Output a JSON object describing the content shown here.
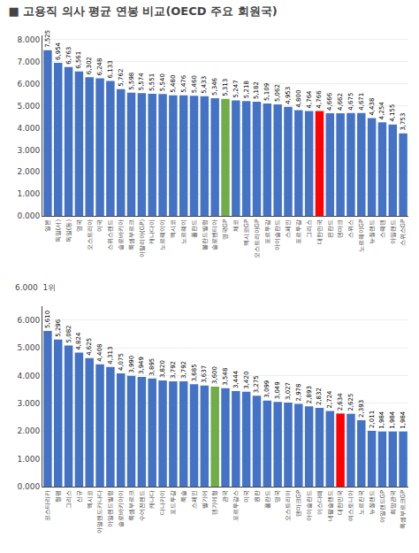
{
  "chart_data": [
    {
      "type": "bar",
      "title": "■ 고용직 의사 평균 연봉 비교(OECD 주요 회원국)",
      "categories": [
        "일본",
        "독일(서)",
        "독일(동)",
        "영국",
        "오스트리아",
        "미국",
        "스위스랜드",
        "슬로바키아",
        "룩셈부르크",
        "이탈리아(GP)",
        "캐나다이",
        "노르웨이이",
        "멕시코",
        "노르웨이",
        "폴란드",
        "볼란드빌렁",
        "슬로벤티아",
        "영국GP",
        "체코",
        "멕시코GP",
        "오스트리아GP",
        "포르투갈",
        "아이슬란드",
        "스페인",
        "포르투갈",
        "그리스",
        "대한민국",
        "핀란드",
        "덴마크",
        "스위스",
        "노르웨이GP",
        "뉴질랜드",
        "스웨덴",
        "아일랜드",
        "스위스GP"
      ],
      "values": [
        7525,
        6954,
        6763,
        6561,
        6302,
        6248,
        6133,
        5762,
        5598,
        5574,
        5551,
        5540,
        5480,
        5476,
        5460,
        5433,
        5346,
        5313,
        5247,
        5218,
        5182,
        5109,
        5062,
        4953,
        4800,
        4764,
        4766,
        4666,
        4662,
        4675,
        4671,
        4438,
        4254,
        4155,
        3753
      ],
      "value_labels": [
        "7,525",
        "6,954",
        "6,763",
        "6,561",
        "6,302",
        "6,248",
        "6,133",
        "5,762",
        "5,598",
        "5,574",
        "5,551",
        "5,540",
        "5,480",
        "5,476",
        "5,460",
        "5,433",
        "5,346",
        "5,313",
        "5,247",
        "5,218",
        "5,182",
        "5,109",
        "5,062",
        "4,953",
        "4,800",
        "4,764",
        "4,766",
        "4,666",
        "4,662",
        "4,675",
        "4,671",
        "4,438",
        "4,254",
        "4,155",
        "3,753"
      ],
      "colors": [
        "#4472c4",
        "#4472c4",
        "#4472c4",
        "#4472c4",
        "#4472c4",
        "#4472c4",
        "#4472c4",
        "#4472c4",
        "#4472c4",
        "#4472c4",
        "#4472c4",
        "#4472c4",
        "#4472c4",
        "#4472c4",
        "#4472c4",
        "#4472c4",
        "#4472c4",
        "#70ad47",
        "#4472c4",
        "#4472c4",
        "#4472c4",
        "#4472c4",
        "#4472c4",
        "#4472c4",
        "#4472c4",
        "#4472c4",
        "#ff0000",
        "#4472c4",
        "#4472c4",
        "#4472c4",
        "#4472c4",
        "#4472c4",
        "#4472c4",
        "#4472c4",
        "#4472c4"
      ],
      "ylim": [
        0,
        8200
      ],
      "yticks": [
        {
          "value": 0,
          "label": "0.000"
        },
        {
          "value": 1000,
          "label": "1.000"
        },
        {
          "value": 2000,
          "label": "2.000"
        },
        {
          "value": 3000,
          "label": "3.000"
        },
        {
          "value": 4000,
          "label": "4.000"
        },
        {
          "value": 5000,
          "label": "5.000"
        },
        {
          "value": 6000,
          "label": "6.000"
        },
        {
          "value": 7000,
          "label": "7.000"
        },
        {
          "value": 8000,
          "label": "8.000"
        }
      ],
      "grid": true,
      "data_labels": true
    },
    {
      "type": "bar",
      "title": "6.000  1위",
      "categories": [
        "코스타리카",
        "형평",
        "그리스",
        "신규",
        "멕시코",
        "아얼렌드카나다",
        "아일렌드빌렁",
        "슬로바키아이",
        "룩셈부르크",
        "수어전렌드",
        "캐나다",
        "다나카이",
        "포드투갈",
        "룩슬",
        "스페인",
        "별기에",
        "덴기에형",
        "관국",
        "포르투갈스",
        "미국",
        "원란",
        "폴란드",
        "덩국",
        "오스트리아",
        "덴마크GP",
        "아이슬란드",
        "이스다떼",
        "네팔슬랜드",
        "대한민국",
        "예스토니아",
        "노르진국",
        "뉴질랜드",
        "아일랜드GP",
        "희망관국",
        "룩셈부르크GP"
      ],
      "values": [
        5610,
        5296,
        5082,
        4824,
        4625,
        4408,
        4313,
        4075,
        3990,
        3949,
        3895,
        3820,
        3792,
        3792,
        3685,
        3637,
        3600,
        3548,
        3444,
        3420,
        3275,
        3099,
        3049,
        3027,
        2978,
        2893,
        2832,
        2724,
        2634,
        2625,
        2393,
        2011,
        1984,
        1984,
        1984
      ],
      "value_labels": [
        "5,610",
        "5,296",
        "5,082",
        "4,824",
        "4,625",
        "4,408",
        "4,313",
        "4,075",
        "3,990",
        "3,949",
        "3,895",
        "3,820",
        "3,792",
        "3,792",
        "3,685",
        "3,637",
        "3,600",
        "3,548",
        "3,444",
        "3,420",
        "3,275",
        "3,099",
        "3,049",
        "3,027",
        "2,978",
        "2,893",
        "2,832",
        "2,724",
        "2,634",
        "2,625",
        "2,393",
        "2,011",
        "1,984",
        "1,984",
        "1,984"
      ],
      "colors": [
        "#4472c4",
        "#4472c4",
        "#4472c4",
        "#4472c4",
        "#4472c4",
        "#4472c4",
        "#4472c4",
        "#4472c4",
        "#4472c4",
        "#4472c4",
        "#4472c4",
        "#4472c4",
        "#4472c4",
        "#4472c4",
        "#4472c4",
        "#4472c4",
        "#70ad47",
        "#4472c4",
        "#4472c4",
        "#4472c4",
        "#4472c4",
        "#4472c4",
        "#4472c4",
        "#4472c4",
        "#4472c4",
        "#4472c4",
        "#4472c4",
        "#4472c4",
        "#ff0000",
        "#4472c4",
        "#4472c4",
        "#4472c4",
        "#4472c4",
        "#4472c4",
        "#4472c4"
      ],
      "ylim": [
        0,
        6500
      ],
      "yticks": [
        {
          "value": 0,
          "label": "0.000"
        },
        {
          "value": 1000,
          "label": "1.000"
        },
        {
          "value": 2000,
          "label": "2.000"
        },
        {
          "value": 3000,
          "label": "3.000"
        },
        {
          "value": 4000,
          "label": "4.000"
        },
        {
          "value": 5000,
          "label": "5.000"
        },
        {
          "value": 6000,
          "label": "6.000"
        }
      ],
      "grid": true,
      "data_labels": true
    }
  ]
}
